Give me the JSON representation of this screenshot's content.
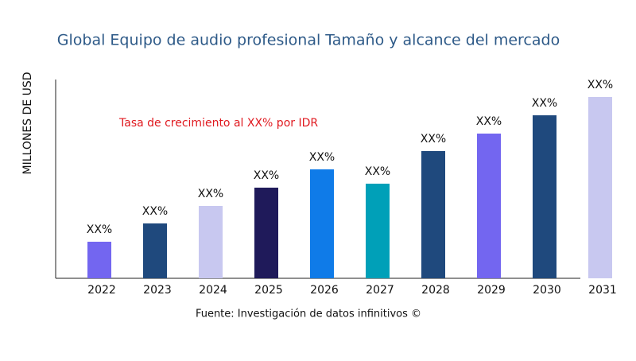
{
  "chart_data": {
    "type": "bar",
    "title": "Global Equipo de audio profesional Tamaño y alcance del mercado",
    "y_label": "MILLONES DE USD",
    "annotation": "Tasa de crecimiento al XX% por IDR",
    "source": "Fuente: Investigación de datos infinitivos ©",
    "categories": [
      "2022",
      "2023",
      "2024",
      "2025",
      "2026",
      "2027",
      "2028",
      "2029",
      "2030",
      "2031"
    ],
    "values": [
      46,
      69,
      91,
      114,
      137,
      119,
      160,
      182,
      205,
      228
    ],
    "value_labels": [
      "XX%",
      "XX%",
      "XX%",
      "XX%",
      "XX%",
      "XX%",
      "XX%",
      "XX%",
      "XX%",
      "XX%"
    ],
    "colors": [
      "#7366f0",
      "#1f497d",
      "#c8c8f0",
      "#1f1a5a",
      "#0f7be8",
      "#00a0b8",
      "#1f497d",
      "#7366f0",
      "#1f497d",
      "#c8c8f0"
    ],
    "ylim": [
      0,
      250
    ]
  }
}
